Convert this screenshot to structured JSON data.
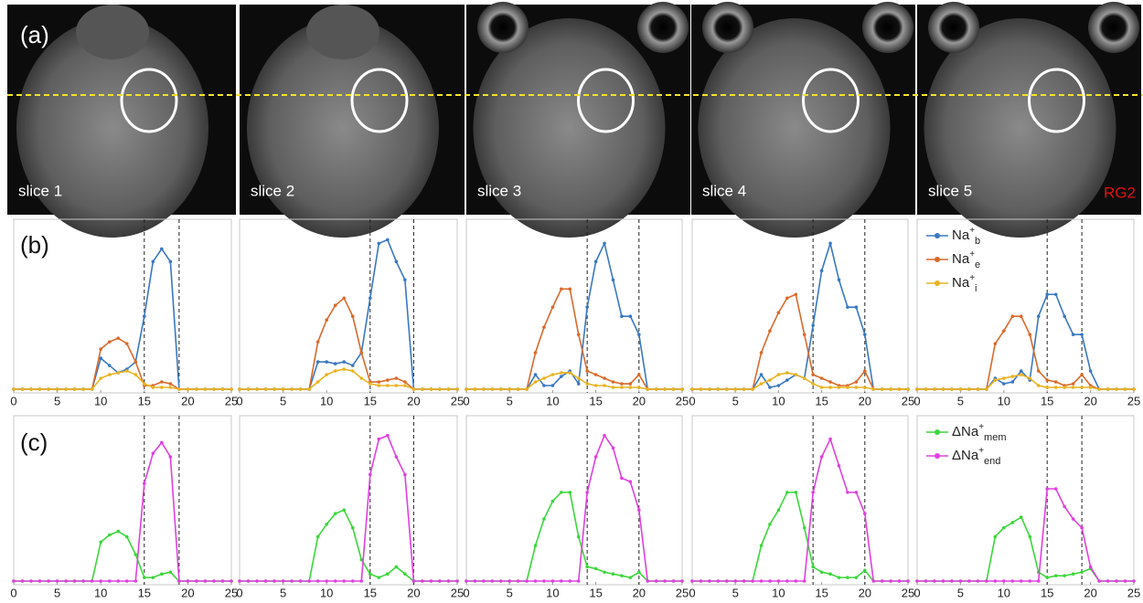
{
  "panel_labels": [
    "(a)",
    "(b)",
    "(c)"
  ],
  "images": [
    {
      "label": "slice 1"
    },
    {
      "label": "slice 2"
    },
    {
      "label": "slice 3"
    },
    {
      "label": "slice 4"
    },
    {
      "label": "slice 5"
    }
  ],
  "cell_line": "RG2",
  "chart_data": [
    {
      "type": "line",
      "xlim": [
        0,
        25
      ],
      "xticks": [
        0,
        5,
        10,
        15,
        20,
        25
      ],
      "ylim": [
        0,
        1
      ],
      "vlines": [
        15,
        19
      ],
      "x": [
        0,
        1,
        2,
        3,
        4,
        5,
        6,
        7,
        8,
        9,
        10,
        11,
        12,
        13,
        14,
        15,
        16,
        17,
        18,
        19,
        20,
        21,
        22,
        23,
        24,
        25
      ],
      "series": [
        {
          "color": "#3a78c2",
          "values": [
            0,
            0,
            0,
            0,
            0,
            0,
            0,
            0,
            0,
            0,
            0.17,
            0.13,
            0.09,
            0.11,
            0.15,
            0.4,
            0.7,
            0.77,
            0.7,
            0,
            0,
            0,
            0,
            0,
            0,
            0
          ]
        },
        {
          "color": "#d96a2b",
          "values": [
            0,
            0,
            0,
            0,
            0,
            0,
            0,
            0,
            0,
            0,
            0.22,
            0.26,
            0.28,
            0.25,
            0.15,
            0.02,
            0.02,
            0.04,
            0.03,
            0,
            0,
            0,
            0,
            0,
            0,
            0
          ]
        },
        {
          "color": "#e8b320",
          "values": [
            0,
            0,
            0,
            0,
            0,
            0,
            0,
            0,
            0,
            0,
            0.06,
            0.08,
            0.09,
            0.1,
            0.08,
            0.03,
            0.01,
            0.01,
            0.01,
            0,
            0,
            0,
            0,
            0,
            0,
            0
          ]
        }
      ]
    },
    {
      "type": "line",
      "xlim": [
        0,
        25
      ],
      "xticks": [
        0,
        5,
        10,
        15,
        20,
        25
      ],
      "ylim": [
        0,
        1
      ],
      "vlines": [
        15,
        20
      ],
      "x": [
        0,
        1,
        2,
        3,
        4,
        5,
        6,
        7,
        8,
        9,
        10,
        11,
        12,
        13,
        14,
        15,
        16,
        17,
        18,
        19,
        20,
        21,
        22,
        23,
        24,
        25
      ],
      "series": [
        {
          "color": "#3a78c2",
          "values": [
            0,
            0,
            0,
            0,
            0,
            0,
            0,
            0,
            0,
            0.15,
            0.15,
            0.14,
            0.15,
            0.13,
            0.2,
            0.5,
            0.8,
            0.82,
            0.7,
            0.6,
            0,
            0,
            0,
            0,
            0,
            0
          ]
        },
        {
          "color": "#d96a2b",
          "values": [
            0,
            0,
            0,
            0,
            0,
            0,
            0,
            0,
            0,
            0.26,
            0.38,
            0.46,
            0.5,
            0.4,
            0.2,
            0.04,
            0.04,
            0.05,
            0.06,
            0.04,
            0,
            0,
            0,
            0,
            0,
            0
          ]
        },
        {
          "color": "#e8b320",
          "values": [
            0,
            0,
            0,
            0,
            0,
            0,
            0,
            0,
            0,
            0.04,
            0.08,
            0.1,
            0.11,
            0.1,
            0.06,
            0.03,
            0.02,
            0.02,
            0.02,
            0.02,
            0,
            0,
            0,
            0,
            0,
            0
          ]
        }
      ]
    },
    {
      "type": "line",
      "xlim": [
        0,
        25
      ],
      "xticks": [
        0,
        5,
        10,
        15,
        20,
        25
      ],
      "ylim": [
        0,
        1
      ],
      "vlines": [
        14,
        20
      ],
      "x": [
        0,
        1,
        2,
        3,
        4,
        5,
        6,
        7,
        8,
        9,
        10,
        11,
        12,
        13,
        14,
        15,
        16,
        17,
        18,
        19,
        20,
        21,
        22,
        23,
        24,
        25
      ],
      "series": [
        {
          "color": "#3a78c2",
          "values": [
            0,
            0,
            0,
            0,
            0,
            0,
            0,
            0,
            0.08,
            0.02,
            0.02,
            0.07,
            0.1,
            0.03,
            0.45,
            0.7,
            0.8,
            0.6,
            0.4,
            0.4,
            0.3,
            0,
            0,
            0,
            0,
            0
          ]
        },
        {
          "color": "#d96a2b",
          "values": [
            0,
            0,
            0,
            0,
            0,
            0,
            0,
            0,
            0.2,
            0.34,
            0.45,
            0.55,
            0.55,
            0.3,
            0.1,
            0.08,
            0.06,
            0.04,
            0.03,
            0.03,
            0.08,
            0,
            0,
            0,
            0,
            0
          ]
        },
        {
          "color": "#e8b320",
          "values": [
            0,
            0,
            0,
            0,
            0,
            0,
            0,
            0,
            0.04,
            0.06,
            0.08,
            0.09,
            0.09,
            0.06,
            0.03,
            0.02,
            0.02,
            0.01,
            0.01,
            0.01,
            0.01,
            0,
            0,
            0,
            0,
            0
          ]
        }
      ]
    },
    {
      "type": "line",
      "xlim": [
        0,
        25
      ],
      "xticks": [
        0,
        5,
        10,
        15,
        20,
        25
      ],
      "ylim": [
        0,
        1
      ],
      "vlines": [
        14,
        20
      ],
      "x": [
        0,
        1,
        2,
        3,
        4,
        5,
        6,
        7,
        8,
        9,
        10,
        11,
        12,
        13,
        14,
        15,
        16,
        17,
        18,
        19,
        20,
        21,
        22,
        23,
        24,
        25
      ],
      "series": [
        {
          "color": "#3a78c2",
          "values": [
            0,
            0,
            0,
            0,
            0,
            0,
            0,
            0,
            0.08,
            0.01,
            0.02,
            0.05,
            0.08,
            0.06,
            0.35,
            0.65,
            0.8,
            0.6,
            0.45,
            0.45,
            0.3,
            0,
            0,
            0,
            0,
            0
          ]
        },
        {
          "color": "#d96a2b",
          "values": [
            0,
            0,
            0,
            0,
            0,
            0,
            0,
            0,
            0.2,
            0.32,
            0.42,
            0.5,
            0.52,
            0.3,
            0.08,
            0.06,
            0.04,
            0.02,
            0.02,
            0.04,
            0.1,
            0,
            0,
            0,
            0,
            0
          ]
        },
        {
          "color": "#e8b320",
          "values": [
            0,
            0,
            0,
            0,
            0,
            0,
            0,
            0,
            0.03,
            0.05,
            0.08,
            0.09,
            0.08,
            0.06,
            0.03,
            0.01,
            0.01,
            0.01,
            0.01,
            0.01,
            0.01,
            0,
            0,
            0,
            0,
            0
          ]
        }
      ]
    },
    {
      "type": "line",
      "xlim": [
        0,
        25
      ],
      "xticks": [
        0,
        5,
        10,
        15,
        20,
        25
      ],
      "ylim": [
        0,
        1
      ],
      "vlines": [
        15,
        19
      ],
      "legend": "upper left",
      "x": [
        0,
        1,
        2,
        3,
        4,
        5,
        6,
        7,
        8,
        9,
        10,
        11,
        12,
        13,
        14,
        15,
        16,
        17,
        18,
        19,
        20,
        21,
        22,
        23,
        24,
        25
      ],
      "series": [
        {
          "name": "Na+b",
          "color": "#3a78c2",
          "values": [
            0,
            0,
            0,
            0,
            0,
            0,
            0,
            0,
            0,
            0.06,
            0.03,
            0.04,
            0.1,
            0.05,
            0.4,
            0.52,
            0.52,
            0.4,
            0.3,
            0.3,
            0.1,
            0,
            0,
            0,
            0,
            0
          ]
        },
        {
          "name": "Na+e",
          "color": "#d96a2b",
          "values": [
            0,
            0,
            0,
            0,
            0,
            0,
            0,
            0,
            0,
            0.25,
            0.32,
            0.4,
            0.4,
            0.3,
            0.1,
            0.05,
            0.04,
            0.02,
            0.03,
            0.08,
            0.02,
            0,
            0,
            0,
            0,
            0
          ]
        },
        {
          "name": "Na+i",
          "color": "#e8b320",
          "values": [
            0,
            0,
            0,
            0,
            0,
            0,
            0,
            0,
            0,
            0.05,
            0.06,
            0.07,
            0.08,
            0.06,
            0.02,
            0.01,
            0.01,
            0.01,
            0.01,
            0.01,
            0.01,
            0,
            0,
            0,
            0,
            0
          ]
        }
      ]
    },
    {
      "type": "line",
      "xlim": [
        0,
        25
      ],
      "xticks": [
        0,
        5,
        10,
        15,
        20,
        25
      ],
      "ylim": [
        0,
        1
      ],
      "vlines": [
        15,
        19
      ],
      "x": [
        0,
        1,
        2,
        3,
        4,
        5,
        6,
        7,
        8,
        9,
        10,
        11,
        12,
        13,
        14,
        15,
        16,
        17,
        18,
        19,
        20,
        21,
        22,
        23,
        24,
        25
      ],
      "series": [
        {
          "color": "#3cd63c",
          "values": [
            0,
            0,
            0,
            0,
            0,
            0,
            0,
            0,
            0,
            0,
            0.22,
            0.26,
            0.28,
            0.25,
            0.15,
            0.02,
            0.02,
            0.04,
            0.05,
            0,
            0,
            0,
            0,
            0,
            0,
            0
          ]
        },
        {
          "color": "#e040e0",
          "values": [
            0,
            0,
            0,
            0,
            0,
            0,
            0,
            0,
            0,
            0,
            0,
            0,
            0,
            0,
            0,
            0.55,
            0.72,
            0.78,
            0.7,
            0,
            0,
            0,
            0,
            0,
            0,
            0
          ]
        }
      ]
    },
    {
      "type": "line",
      "xlim": [
        0,
        25
      ],
      "xticks": [
        0,
        5,
        10,
        15,
        20,
        25
      ],
      "ylim": [
        0,
        1
      ],
      "vlines": [
        15,
        20
      ],
      "x": [
        0,
        1,
        2,
        3,
        4,
        5,
        6,
        7,
        8,
        9,
        10,
        11,
        12,
        13,
        14,
        15,
        16,
        17,
        18,
        19,
        20,
        21,
        22,
        23,
        24,
        25
      ],
      "series": [
        {
          "color": "#3cd63c",
          "values": [
            0,
            0,
            0,
            0,
            0,
            0,
            0,
            0,
            0,
            0.25,
            0.32,
            0.38,
            0.4,
            0.3,
            0.12,
            0.04,
            0.02,
            0.04,
            0.08,
            0.04,
            0,
            0,
            0,
            0,
            0,
            0
          ]
        },
        {
          "color": "#e040e0",
          "values": [
            0,
            0,
            0,
            0,
            0,
            0,
            0,
            0,
            0,
            0,
            0,
            0,
            0,
            0,
            0,
            0.6,
            0.8,
            0.82,
            0.7,
            0.6,
            0,
            0,
            0,
            0,
            0,
            0
          ]
        }
      ]
    },
    {
      "type": "line",
      "xlim": [
        0,
        25
      ],
      "xticks": [
        0,
        5,
        10,
        15,
        20,
        25
      ],
      "ylim": [
        0,
        1
      ],
      "vlines": [
        14,
        20
      ],
      "x": [
        0,
        1,
        2,
        3,
        4,
        5,
        6,
        7,
        8,
        9,
        10,
        11,
        12,
        13,
        14,
        15,
        16,
        17,
        18,
        19,
        20,
        21,
        22,
        23,
        24,
        25
      ],
      "series": [
        {
          "color": "#3cd63c",
          "values": [
            0,
            0,
            0,
            0,
            0,
            0,
            0,
            0,
            0.2,
            0.35,
            0.45,
            0.5,
            0.5,
            0.25,
            0.08,
            0.07,
            0.05,
            0.04,
            0.03,
            0.02,
            0.05,
            0,
            0,
            0,
            0,
            0
          ]
        },
        {
          "color": "#e040e0",
          "values": [
            0,
            0,
            0,
            0,
            0,
            0,
            0,
            0,
            0,
            0,
            0,
            0,
            0,
            0,
            0.5,
            0.7,
            0.82,
            0.75,
            0.58,
            0.56,
            0.4,
            0,
            0,
            0,
            0,
            0
          ]
        }
      ]
    },
    {
      "type": "line",
      "xlim": [
        0,
        25
      ],
      "xticks": [
        0,
        5,
        10,
        15,
        20,
        25
      ],
      "ylim": [
        0,
        1
      ],
      "vlines": [
        14,
        20
      ],
      "x": [
        0,
        1,
        2,
        3,
        4,
        5,
        6,
        7,
        8,
        9,
        10,
        11,
        12,
        13,
        14,
        15,
        16,
        17,
        18,
        19,
        20,
        21,
        22,
        23,
        24,
        25
      ],
      "series": [
        {
          "color": "#3cd63c",
          "values": [
            0,
            0,
            0,
            0,
            0,
            0,
            0,
            0,
            0.2,
            0.32,
            0.4,
            0.5,
            0.5,
            0.3,
            0.08,
            0.05,
            0.04,
            0.02,
            0.02,
            0.02,
            0.06,
            0,
            0,
            0,
            0,
            0
          ]
        },
        {
          "color": "#e040e0",
          "values": [
            0,
            0,
            0,
            0,
            0,
            0,
            0,
            0,
            0,
            0,
            0,
            0,
            0,
            0,
            0.5,
            0.7,
            0.8,
            0.65,
            0.5,
            0.5,
            0.38,
            0,
            0,
            0,
            0,
            0
          ]
        }
      ]
    },
    {
      "type": "line",
      "xlim": [
        0,
        25
      ],
      "xticks": [
        0,
        5,
        10,
        15,
        20,
        25
      ],
      "ylim": [
        0,
        1
      ],
      "vlines": [
        15,
        19
      ],
      "legend": "upper left",
      "x": [
        0,
        1,
        2,
        3,
        4,
        5,
        6,
        7,
        8,
        9,
        10,
        11,
        12,
        13,
        14,
        15,
        16,
        17,
        18,
        19,
        20,
        21,
        22,
        23,
        24,
        25
      ],
      "series": [
        {
          "name": "ΔNa+mem",
          "color": "#3cd63c",
          "values": [
            0,
            0,
            0,
            0,
            0,
            0,
            0,
            0,
            0,
            0.25,
            0.3,
            0.33,
            0.36,
            0.25,
            0.05,
            0.02,
            0.03,
            0.03,
            0.04,
            0.05,
            0.07,
            0,
            0,
            0,
            0,
            0
          ]
        },
        {
          "name": "ΔNa+end",
          "color": "#e040e0",
          "values": [
            0,
            0,
            0,
            0,
            0,
            0,
            0,
            0,
            0,
            0,
            0,
            0,
            0,
            0,
            0,
            0.52,
            0.52,
            0.42,
            0.35,
            0.3,
            0.08,
            0,
            0,
            0,
            0,
            0
          ]
        }
      ]
    }
  ]
}
